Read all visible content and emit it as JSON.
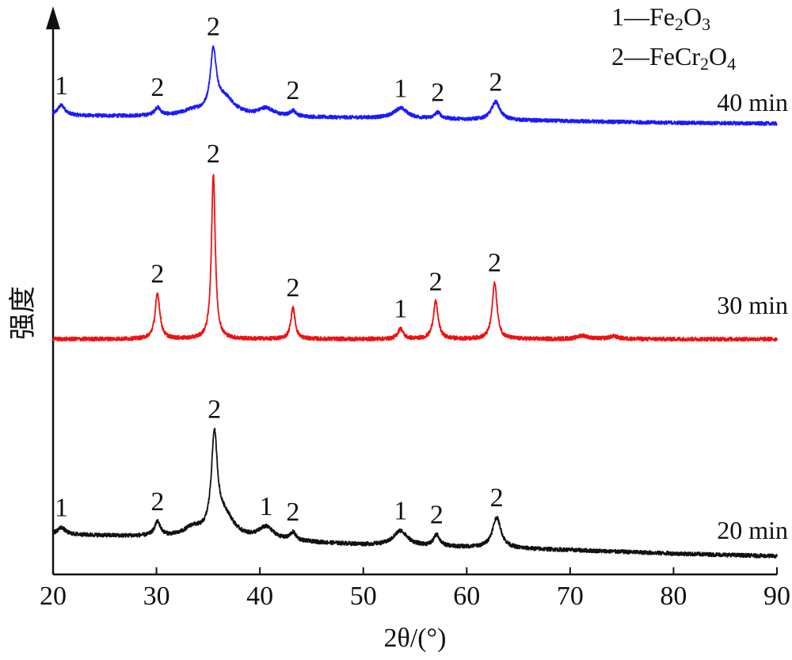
{
  "chart_data": {
    "type": "line",
    "xlabel": "2θ/(°)",
    "ylabel": "强度",
    "xlim": [
      20,
      90
    ],
    "xticks": [
      20,
      30,
      40,
      50,
      60,
      70,
      80,
      90
    ],
    "grid": false,
    "legend_position": "top-right",
    "legend": [
      {
        "id": "1",
        "phase": "Fe2O3"
      },
      {
        "id": "2",
        "phase": "FeCr2O4"
      }
    ],
    "series": [
      {
        "name": "40 min",
        "color": "#1a1aff",
        "baseline": [
          [
            20,
            0.1
          ],
          [
            30,
            0.09
          ],
          [
            40,
            0.08
          ],
          [
            50,
            0.07
          ],
          [
            60,
            0.05
          ],
          [
            70,
            0.03
          ],
          [
            80,
            0.01
          ],
          [
            90,
            0.0
          ]
        ],
        "peaks": [
          {
            "x": 20.8,
            "h": 0.13,
            "w": 0.45,
            "label": "1"
          },
          {
            "x": 30.1,
            "h": 0.1,
            "w": 0.35,
            "label": "2"
          },
          {
            "x": 33.5,
            "h": 0.06,
            "w": 1.2,
            "label": ""
          },
          {
            "x": 35.5,
            "h": 0.75,
            "w": 0.35,
            "label": "2"
          },
          {
            "x": 36.6,
            "h": 0.22,
            "w": 1.2,
            "label": ""
          },
          {
            "x": 40.6,
            "h": 0.1,
            "w": 0.9,
            "label": ""
          },
          {
            "x": 43.2,
            "h": 0.07,
            "w": 0.35,
            "label": "2"
          },
          {
            "x": 53.6,
            "h": 0.13,
            "w": 0.8,
            "label": "1"
          },
          {
            "x": 57.2,
            "h": 0.08,
            "w": 0.35,
            "label": "2"
          },
          {
            "x": 62.8,
            "h": 0.23,
            "w": 0.5,
            "label": "2"
          }
        ]
      },
      {
        "name": "30 min",
        "color": "#ee1111",
        "baseline": [
          [
            20,
            0.0
          ],
          [
            90,
            0.0
          ]
        ],
        "peaks": [
          {
            "x": 30.1,
            "h": 0.52,
            "w": 0.28,
            "label": "2"
          },
          {
            "x": 35.5,
            "h": 1.9,
            "w": 0.22,
            "label": "2"
          },
          {
            "x": 43.2,
            "h": 0.36,
            "w": 0.25,
            "label": "2"
          },
          {
            "x": 53.6,
            "h": 0.12,
            "w": 0.3,
            "label": "1"
          },
          {
            "x": 57.0,
            "h": 0.43,
            "w": 0.28,
            "label": "2"
          },
          {
            "x": 62.7,
            "h": 0.65,
            "w": 0.28,
            "label": "2"
          },
          {
            "x": 71.2,
            "h": 0.04,
            "w": 0.6,
            "label": ""
          },
          {
            "x": 74.2,
            "h": 0.03,
            "w": 0.6,
            "label": ""
          }
        ]
      },
      {
        "name": "20 min",
        "color": "#111111",
        "baseline": [
          [
            20,
            0.25
          ],
          [
            30,
            0.22
          ],
          [
            40,
            0.18
          ],
          [
            50,
            0.13
          ],
          [
            60,
            0.1
          ],
          [
            70,
            0.07
          ],
          [
            80,
            0.03
          ],
          [
            90,
            0.0
          ]
        ],
        "peaks": [
          {
            "x": 20.8,
            "h": 0.08,
            "w": 0.45,
            "label": "1"
          },
          {
            "x": 30.1,
            "h": 0.16,
            "w": 0.35,
            "label": "2"
          },
          {
            "x": 33.5,
            "h": 0.1,
            "w": 1.0,
            "label": ""
          },
          {
            "x": 35.6,
            "h": 1.1,
            "w": 0.35,
            "label": "2"
          },
          {
            "x": 36.6,
            "h": 0.25,
            "w": 1.1,
            "label": ""
          },
          {
            "x": 40.6,
            "h": 0.14,
            "w": 0.9,
            "label": "1"
          },
          {
            "x": 43.2,
            "h": 0.09,
            "w": 0.35,
            "label": "2"
          },
          {
            "x": 53.6,
            "h": 0.17,
            "w": 0.8,
            "label": "1"
          },
          {
            "x": 57.1,
            "h": 0.13,
            "w": 0.35,
            "label": "2"
          },
          {
            "x": 62.9,
            "h": 0.35,
            "w": 0.5,
            "label": "2"
          }
        ]
      }
    ]
  }
}
